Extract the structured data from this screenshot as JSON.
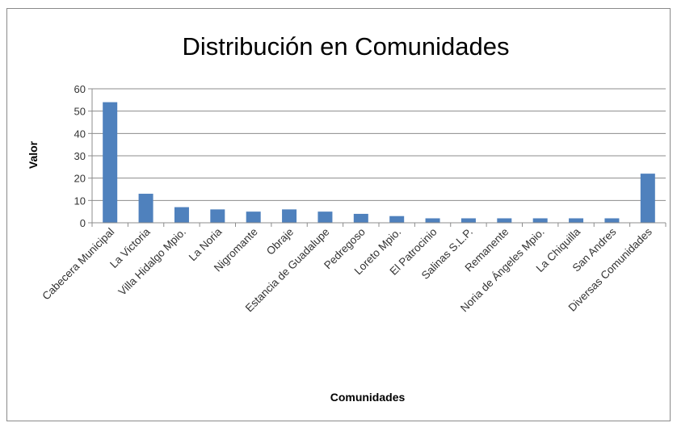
{
  "chart_data": {
    "type": "bar",
    "title": "Distribución en Comunidades",
    "xlabel": "Comunidades",
    "ylabel": "Valor",
    "ylim": [
      0,
      60
    ],
    "yticks": [
      0,
      10,
      20,
      30,
      40,
      50,
      60
    ],
    "grid": true,
    "legend": "none",
    "bar_color": "#4f81bd",
    "categories": [
      "Cabecera Municipal",
      "La Victoria",
      "Villa Hidalgo Mpio.",
      "La Noria",
      "Nigromante",
      "Obraje",
      "Estancia de Guadalupe",
      "Pedregoso",
      "Loreto Mpio.",
      "El Patrocinio",
      "Salinas S.L.P.",
      "Remanente",
      "Noria de Ángeles Mpio.",
      "La Chiquilla",
      "San Andres",
      "Diversas Comunidades"
    ],
    "values": [
      54,
      13,
      7,
      6,
      5,
      6,
      5,
      4,
      3,
      2,
      2,
      2,
      2,
      2,
      2,
      22
    ]
  }
}
